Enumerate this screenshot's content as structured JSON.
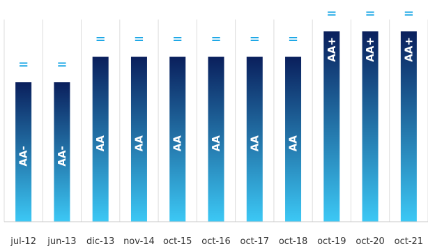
{
  "chart_data": {
    "type": "bar",
    "categories": [
      "jul-12",
      "jun-13",
      "dic-13",
      "nov-14",
      "oct-15",
      "oct-16",
      "oct-17",
      "oct-18",
      "oct-19",
      "oct-20",
      "oct-21"
    ],
    "values": [
      1,
      1,
      2,
      2,
      2,
      2,
      2,
      2,
      3,
      3,
      3
    ],
    "value_scale": [
      "AA-",
      "AA",
      "AA+"
    ],
    "bar_labels": [
      "AA-",
      "AA-",
      "AA",
      "AA",
      "AA",
      "AA",
      "AA",
      "AA",
      "AA+",
      "AA+",
      "AA+"
    ],
    "outlook_labels": [
      "=",
      "=",
      "=",
      "=",
      "=",
      "=",
      "=",
      "=",
      "=",
      "=",
      "="
    ],
    "title": "",
    "xlabel": "",
    "ylabel": "",
    "grid": "vertical separators",
    "legend": "none"
  },
  "colors": {
    "bar_top": "#0a1f5c",
    "bar_bottom": "#3cc8f5",
    "outlook": "#1fa8e6",
    "separator": "#dcdcdc",
    "axis": "#c8c8c8"
  }
}
